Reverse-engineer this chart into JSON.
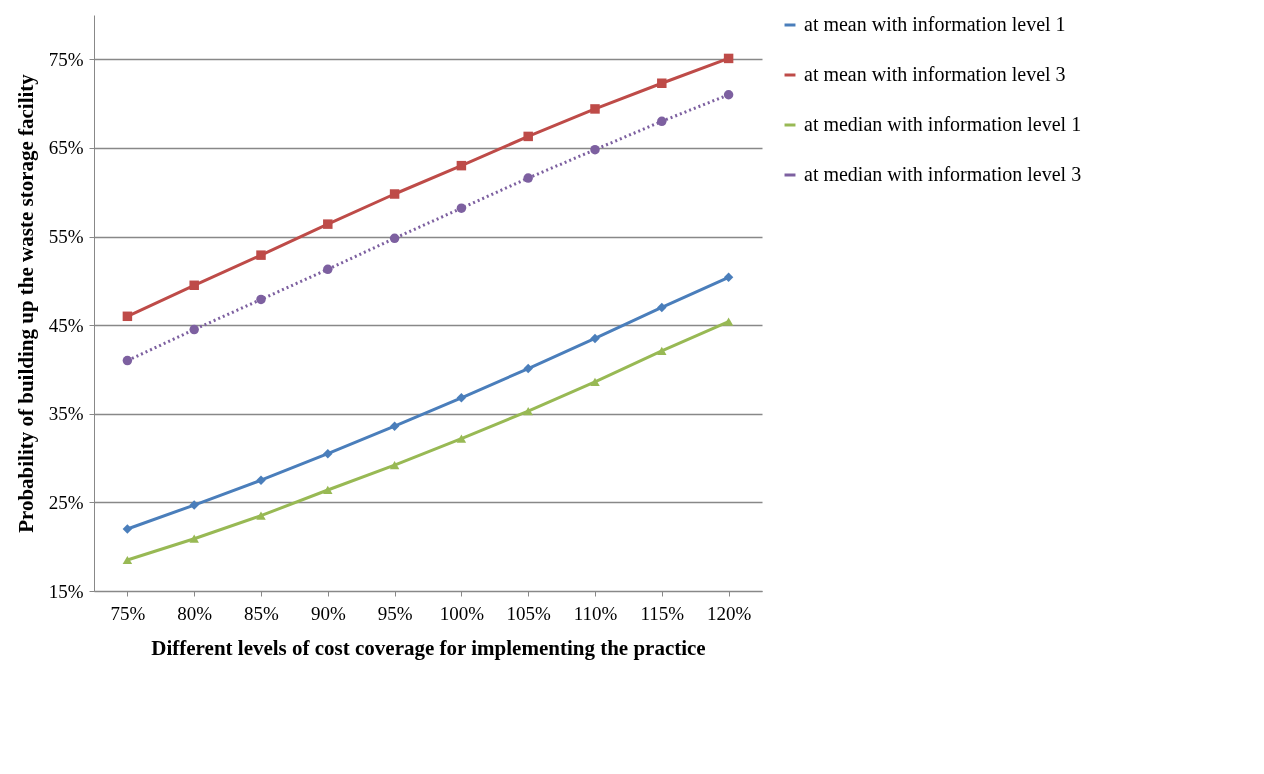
{
  "chart_data": {
    "type": "line",
    "xlabel": "Different levels of cost coverage for implementing the practice",
    "ylabel": "Probability of building up the waste storage facility",
    "categories": [
      "75%",
      "80%",
      "85%",
      "90%",
      "95%",
      "100%",
      "105%",
      "110%",
      "115%",
      "120%"
    ],
    "series": [
      {
        "name": "at mean with information level 1",
        "color": "#4a7ebb",
        "marker": "diamond",
        "line_style": "solid",
        "values": [
          22.0,
          24.7,
          27.5,
          30.5,
          33.6,
          36.8,
          40.1,
          43.5,
          47.0,
          50.4
        ]
      },
      {
        "name": "at mean with information level 3",
        "color": "#be4b48",
        "marker": "square",
        "line_style": "solid",
        "values": [
          46.0,
          49.5,
          52.9,
          56.4,
          59.8,
          63.0,
          66.3,
          69.4,
          72.3,
          75.1
        ]
      },
      {
        "name": "at median with information level 1",
        "color": "#98b954",
        "marker": "triangle",
        "line_style": "solid",
        "values": [
          18.5,
          20.9,
          23.5,
          26.4,
          29.2,
          32.2,
          35.3,
          38.6,
          42.1,
          45.4
        ]
      },
      {
        "name": "at median with information level 3",
        "color": "#7d60a0",
        "marker": "circle",
        "line_style": "dotted",
        "values": [
          41.0,
          44.5,
          47.9,
          51.3,
          54.8,
          58.2,
          61.6,
          64.8,
          68.0,
          71.0
        ]
      }
    ],
    "ylim": [
      15,
      80
    ],
    "yticks": [
      {
        "value": 15,
        "label": "15%"
      },
      {
        "value": 25,
        "label": "25%"
      },
      {
        "value": 35,
        "label": "35%"
      },
      {
        "value": 45,
        "label": "45%"
      },
      {
        "value": 55,
        "label": "55%"
      },
      {
        "value": 65,
        "label": "65%"
      },
      {
        "value": 75,
        "label": "75%"
      }
    ],
    "grid": "y",
    "legend": "right"
  }
}
